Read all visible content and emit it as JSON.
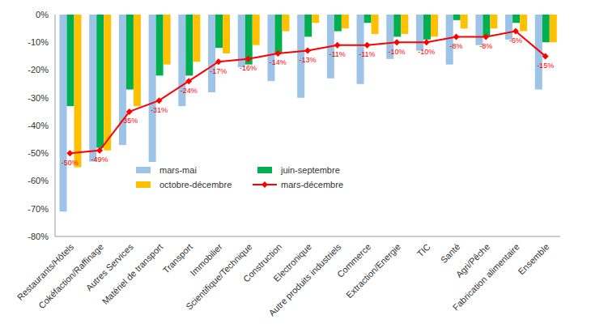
{
  "chart_data": {
    "type": "bar",
    "categories": [
      "Restaurants/Hôtels",
      "Cokéfaction/Raffinage",
      "Autres Services",
      "Matériel de transport",
      "Transport",
      "Immobilier",
      "Scientifique/Technique",
      "Construction",
      "Electronique",
      "Autre produits industriels",
      "Commerce",
      "Extraction/Energie",
      "TIC",
      "Santé",
      "Agri/Pêche",
      "Fabrication alimentaire",
      "Ensemble"
    ],
    "series": [
      {
        "name": "mars-mai",
        "type": "bar",
        "color": "#9dc3e6",
        "values": [
          -71,
          -53,
          -47,
          -54,
          -33,
          -28,
          -19,
          -24,
          -30,
          -23,
          -25,
          -16,
          -13,
          -18,
          -11,
          -9,
          -27
        ]
      },
      {
        "name": "juin-septembre",
        "type": "bar",
        "color": "#00b050",
        "values": [
          -33,
          -48,
          -27,
          -22,
          -22,
          -12,
          -18,
          -14,
          -8,
          -6,
          -3,
          -8,
          -9,
          -2,
          -8,
          -3,
          -10
        ]
      },
      {
        "name": "octobre-décembre",
        "type": "bar",
        "color": "#ffc000",
        "values": [
          -55,
          -49,
          -33,
          -18,
          -17,
          -14,
          -11,
          -6,
          -3,
          -5,
          -7,
          -7,
          -8,
          -5,
          -5,
          -6,
          -10
        ]
      },
      {
        "name": "mars-décembre",
        "type": "line",
        "color": "#ff0000",
        "marker": "diamond",
        "data_labels": true,
        "values": [
          -50,
          -49,
          -35,
          -31,
          -24,
          -17,
          -16,
          -14,
          -13,
          -11,
          -11,
          -10,
          -10,
          -8,
          -8,
          -6,
          -15
        ],
        "value_labels": [
          "-50%",
          "-49%",
          "-35%",
          "-31%",
          "-24%",
          "-17%",
          "-16%",
          "-14%",
          "-13%",
          "-11%",
          "-11%",
          "-10%",
          "-10%",
          "-8%",
          "-8%",
          "-6%",
          "-15%"
        ]
      }
    ],
    "ylim": [
      -80,
      0
    ],
    "yticks": [
      {
        "value": 0,
        "label": "0%"
      },
      {
        "value": -10,
        "label": "-10%"
      },
      {
        "value": -20,
        "label": "-20%"
      },
      {
        "value": -30,
        "label": "-30%"
      },
      {
        "value": -40,
        "label": "-40%"
      },
      {
        "value": -50,
        "label": "-50%"
      },
      {
        "value": -60,
        "label": "-60%"
      },
      {
        "value": -70,
        "label": "-70%"
      },
      {
        "value": -80,
        "label": "-80%"
      }
    ],
    "grid": false
  }
}
